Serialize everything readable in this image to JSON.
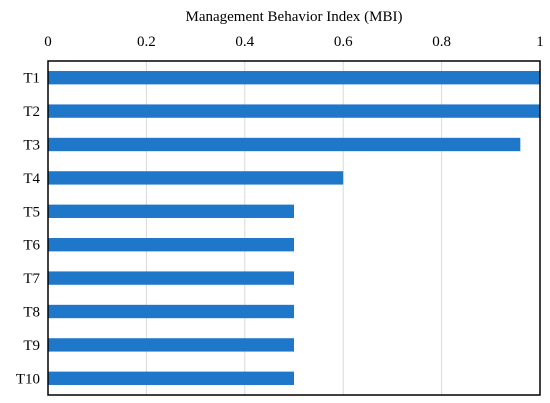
{
  "chart_data": {
    "type": "bar",
    "orientation": "horizontal",
    "title": "",
    "xlabel": "Management Behavior Index (MBI)",
    "ylabel": "",
    "x_axis_position": "top",
    "xlim": [
      0,
      1
    ],
    "xticks": [
      0,
      0.2,
      0.4,
      0.6,
      0.8,
      1
    ],
    "xtick_labels": [
      "0",
      "0.2",
      "0.4",
      "0.6",
      "0.8",
      "1"
    ],
    "grid": "vertical",
    "categories": [
      "T1",
      "T2",
      "T3",
      "T4",
      "T5",
      "T6",
      "T7",
      "T8",
      "T9",
      "T10"
    ],
    "values": [
      1.0,
      1.0,
      0.96,
      0.6,
      0.5,
      0.5,
      0.5,
      0.5,
      0.5,
      0.5
    ],
    "colors": {
      "bar": "#1f77c9",
      "grid": "#d9d9d9",
      "frame": "#000000"
    }
  }
}
